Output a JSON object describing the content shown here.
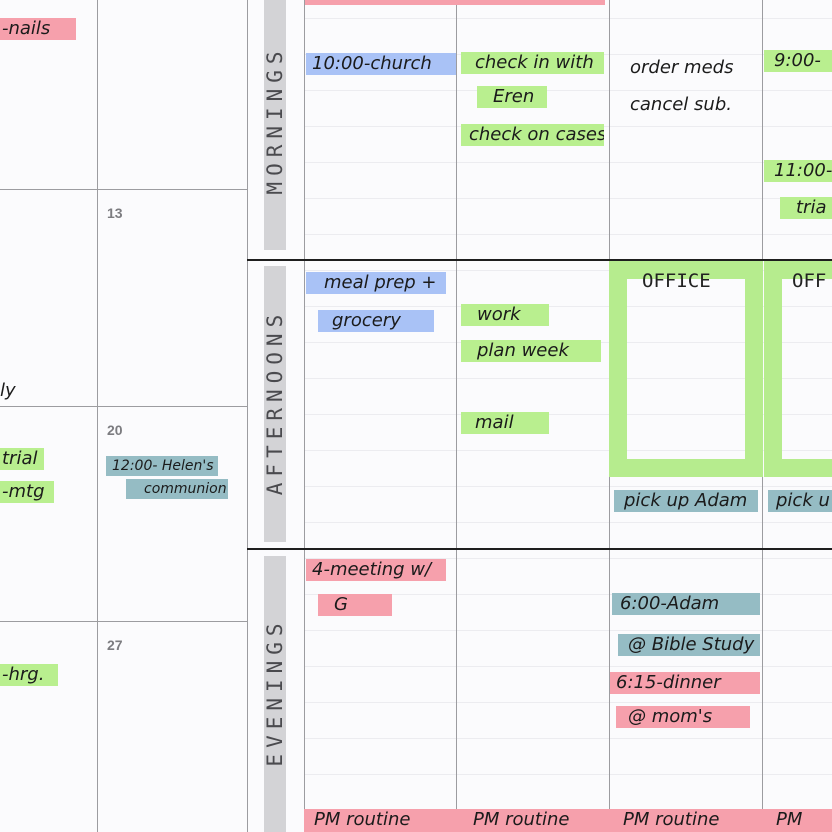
{
  "left_calendar": {
    "day_numbers": [
      "13",
      "20",
      "27"
    ]
  },
  "sections": {
    "mornings": "MORNINGS",
    "afternoons": "AFTERNOONS",
    "evenings": "EVENINGS"
  },
  "entries": {
    "left_nails": "-nails",
    "left_ly": "ly",
    "left_trial": "trial",
    "left_mtg": "-mtg",
    "left_hrg": "-hrg.",
    "helens_1": "12:00- Helen's",
    "helens_2": "communion",
    "church": "10:00-church",
    "checkin_1": "check in with",
    "checkin_2": "Eren",
    "check_cases": "check on cases",
    "order_meds": "order meds",
    "cancel_sub": "cancel sub.",
    "nine": "9:00-",
    "eleven": "11:00-",
    "tria": "tria",
    "meal_prep": "meal prep +",
    "grocery": "grocery",
    "work": "work",
    "plan_week": "plan week",
    "mail": "mail",
    "office_1": "OFFICE",
    "office_2": "OFF",
    "pickup_1": "pick up Adam",
    "pickup_2": "pick u",
    "meeting_1": "4-meeting w/",
    "meeting_2": "G",
    "adam_six": "6:00-Adam",
    "bible_study": "@ Bible Study",
    "dinner": "6:15-dinner",
    "moms": "@ mom's",
    "pm_1": "PM routine",
    "pm_2": "PM routine",
    "pm_3": "PM routine",
    "pm_4": "PM"
  },
  "colors": {
    "pink": "#f6a0ac",
    "blue": "#a9c2f6",
    "green": "#b9ef8f",
    "teal": "#95bcc4"
  }
}
